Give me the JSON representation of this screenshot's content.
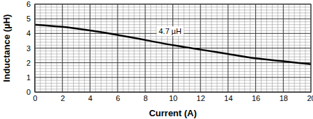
{
  "chart_data": {
    "type": "line",
    "x_label": "Current (A)",
    "y_label": "Inductance (µH)",
    "x": [
      0,
      2,
      4,
      6,
      8,
      10,
      12,
      14,
      16,
      18,
      20
    ],
    "values": [
      4.6,
      4.45,
      4.2,
      3.9,
      3.55,
      3.2,
      2.9,
      2.6,
      2.3,
      2.1,
      1.9
    ],
    "color": "#000000",
    "xlim": [
      0,
      20
    ],
    "xticks": [
      0,
      2,
      4,
      6,
      8,
      10,
      12,
      14,
      16,
      18,
      20
    ],
    "ylim": [
      0,
      6
    ],
    "yticks": [
      0,
      1,
      2,
      3,
      4,
      5,
      6
    ],
    "grid": true,
    "annotations": [
      {
        "text": "4.7 µH",
        "x": 9.8,
        "y": 4.15
      }
    ]
  }
}
